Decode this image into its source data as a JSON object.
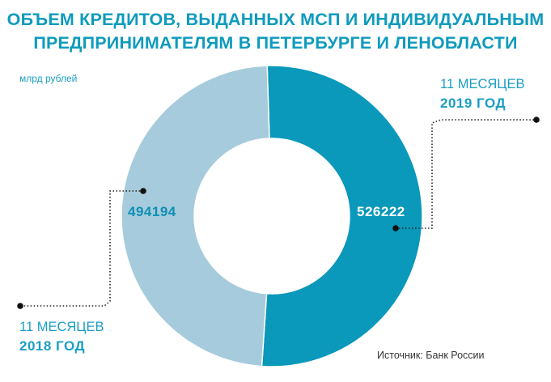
{
  "title_line1": "ОБЪЕМ КРЕДИТОВ, ВЫДАННЫХ МСП И ИНДИВИДУАЛЬНЫМ",
  "title_line2": "ПРЕДПРИНИМАТЕЛЯМ В ПЕТЕРБУРГЕ И ЛЕНОБЛАСТИ",
  "unit_label": "млрд рублей",
  "source": "Источник: Банк России",
  "colors": {
    "title": "#0e9bbd",
    "series_2019": "#0a98bb",
    "series_2018": "#a6cbdc"
  },
  "chart_data": {
    "type": "pie",
    "style": "donut",
    "title": "ОБЪЕМ КРЕДИТОВ, ВЫДАННЫХ МСП И ИНДИВИДУАЛЬНЫМ ПРЕДПРИНИМАТЕЛЯМ В ПЕТЕРБУРГЕ И ЛЕНОБЛАСТИ",
    "unit": "млрд рублей",
    "slices": [
      {
        "period": "11 МЕСЯЦЕВ",
        "year": "2019 ГОД",
        "value": 526222,
        "label": "526222",
        "color": "#0a98bb"
      },
      {
        "period": "11 МЕСЯЦЕВ",
        "year": "2018 ГОД",
        "value": 494194,
        "label": "494194",
        "color": "#a6cbdc"
      }
    ]
  }
}
